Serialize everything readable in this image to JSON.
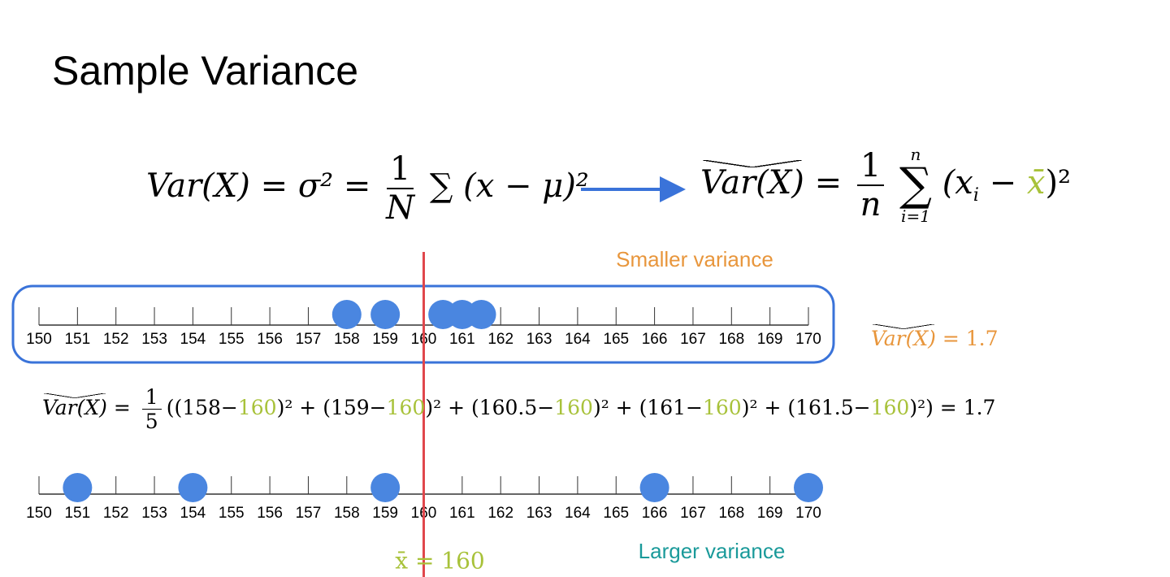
{
  "title": "Sample Variance",
  "population_formula": {
    "lhs": "Var(X) = σ² =",
    "numerator": "1",
    "denominator": "N",
    "rhs": "∑ (x − μ)²"
  },
  "sample_formula": {
    "lhs_hat": "Var(X)",
    "equals": "=",
    "numerator": "1",
    "denominator": "n",
    "sum": "∑",
    "sum_upper": "n",
    "sum_lower": "i=1",
    "body_open": "(x",
    "sub": "i",
    "minus": " − ",
    "mean_symbol": "x̄",
    "body_close": ")²"
  },
  "computation": {
    "lhs_hat": "Var(X)",
    "equals": "=",
    "numerator": "1",
    "denominator": "5",
    "expression": [
      "((158−",
      "160",
      ")² + (159−",
      "160",
      ")² + (160.5−",
      "160",
      ")² + (161−",
      "160",
      ")² + (161.5−",
      "160",
      ")²) = 1.7"
    ]
  },
  "mean_marker": {
    "label": "x̄ = 160",
    "value": 160,
    "color": "#e0474c",
    "label_color": "#a8c23a"
  },
  "chart_data": [
    {
      "type": "dot",
      "title": "Smaller variance",
      "title_color": "#e8963c",
      "values": [
        158,
        159,
        160.5,
        161,
        161.5
      ],
      "color": "#4a86e0",
      "xlim": [
        150,
        170
      ],
      "xticks": [
        150,
        151,
        152,
        153,
        154,
        155,
        156,
        157,
        158,
        159,
        160,
        161,
        162,
        163,
        164,
        165,
        166,
        167,
        168,
        169,
        170
      ],
      "annotation": {
        "hat": "Var(X)",
        "text": "= 1.7"
      }
    },
    {
      "type": "dot",
      "title": "Larger variance",
      "title_color": "#1a9a9a",
      "values": [
        151,
        154,
        159,
        166,
        170
      ],
      "color": "#4a86e0",
      "xlim": [
        150,
        170
      ],
      "xticks": [
        150,
        151,
        152,
        153,
        154,
        155,
        156,
        157,
        158,
        159,
        160,
        161,
        162,
        163,
        164,
        165,
        166,
        167,
        168,
        169,
        170
      ]
    }
  ]
}
